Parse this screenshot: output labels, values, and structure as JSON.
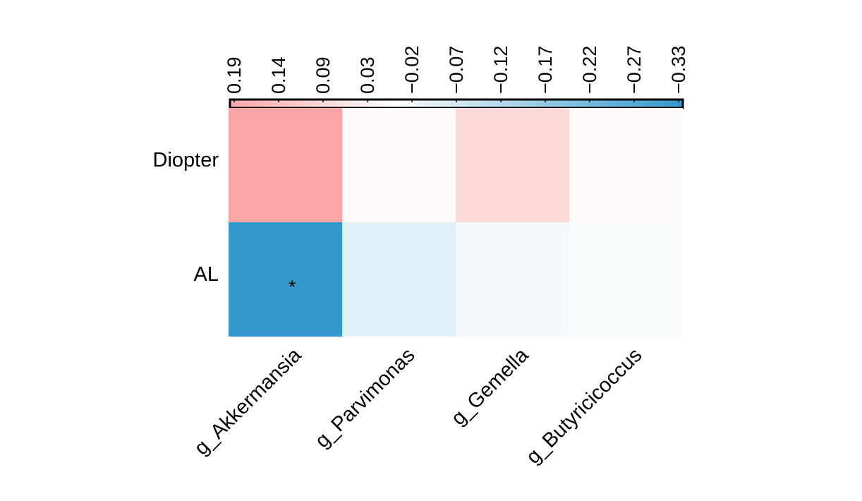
{
  "chart_data": {
    "type": "heatmap",
    "rows": [
      "Diopter",
      "AL"
    ],
    "columns": [
      "g_Akkermansia",
      "g_Parvimonas",
      "g_Gemella",
      "g_Butyricicoccus"
    ],
    "values": [
      [
        0.19,
        0.01,
        0.08,
        0.01
      ],
      [
        -0.33,
        -0.05,
        -0.02,
        -0.01
      ]
    ],
    "significance": [
      [
        "",
        "",
        "",
        ""
      ],
      [
        "*",
        "",
        "",
        ""
      ]
    ],
    "colorbar": {
      "tick_labels": [
        "0.19",
        "0.14",
        "0.09",
        "0.03",
        "−0.02",
        "−0.07",
        "−0.12",
        "−0.17",
        "−0.22",
        "−0.27",
        "−0.33"
      ],
      "range": [
        0.19,
        -0.33
      ],
      "placement": "top",
      "colors": {
        "positive": "#fba6a6",
        "zero": "#ffffff",
        "negative": "#3399cc"
      }
    }
  }
}
